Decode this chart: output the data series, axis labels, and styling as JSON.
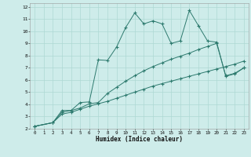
{
  "xlabel": "Humidex (Indice chaleur)",
  "bg_color": "#ceecea",
  "grid_color": "#aed8d4",
  "line_color": "#2d7a6e",
  "xlim": [
    -0.5,
    23.5
  ],
  "ylim": [
    2,
    12.3
  ],
  "xticks": [
    0,
    1,
    2,
    3,
    4,
    5,
    6,
    7,
    8,
    9,
    10,
    11,
    12,
    13,
    14,
    15,
    16,
    17,
    18,
    19,
    20,
    21,
    22,
    23
  ],
  "yticks": [
    2,
    3,
    4,
    5,
    6,
    7,
    8,
    9,
    10,
    11,
    12
  ],
  "series1_x": [
    0,
    2,
    3,
    4,
    5,
    6,
    7,
    8,
    9,
    10,
    11,
    12,
    13,
    14,
    15,
    16,
    17,
    18,
    19,
    20,
    21,
    22,
    23
  ],
  "series1_y": [
    2.2,
    2.5,
    3.5,
    3.5,
    4.15,
    4.2,
    7.65,
    7.6,
    8.7,
    10.3,
    11.5,
    10.6,
    10.85,
    10.6,
    9.0,
    9.2,
    11.7,
    10.45,
    9.2,
    9.1,
    6.3,
    6.5,
    7.0
  ],
  "series2_x": [
    0,
    2,
    3,
    4,
    5,
    6,
    7,
    8,
    9,
    10,
    11,
    12,
    13,
    14,
    15,
    16,
    17,
    18,
    19,
    20,
    21,
    22,
    23
  ],
  "series2_y": [
    2.2,
    2.5,
    3.35,
    3.5,
    3.7,
    4.05,
    4.15,
    4.9,
    5.4,
    5.9,
    6.35,
    6.75,
    7.1,
    7.4,
    7.7,
    7.95,
    8.2,
    8.5,
    8.75,
    9.0,
    6.35,
    6.55,
    7.0
  ],
  "series3_x": [
    0,
    2,
    3,
    4,
    5,
    6,
    7,
    8,
    9,
    10,
    11,
    12,
    13,
    14,
    15,
    16,
    17,
    18,
    19,
    20,
    21,
    22,
    23
  ],
  "series3_y": [
    2.2,
    2.5,
    3.2,
    3.35,
    3.6,
    3.85,
    4.05,
    4.25,
    4.5,
    4.75,
    5.0,
    5.25,
    5.5,
    5.7,
    5.9,
    6.1,
    6.3,
    6.5,
    6.7,
    6.9,
    7.1,
    7.3,
    7.55
  ]
}
